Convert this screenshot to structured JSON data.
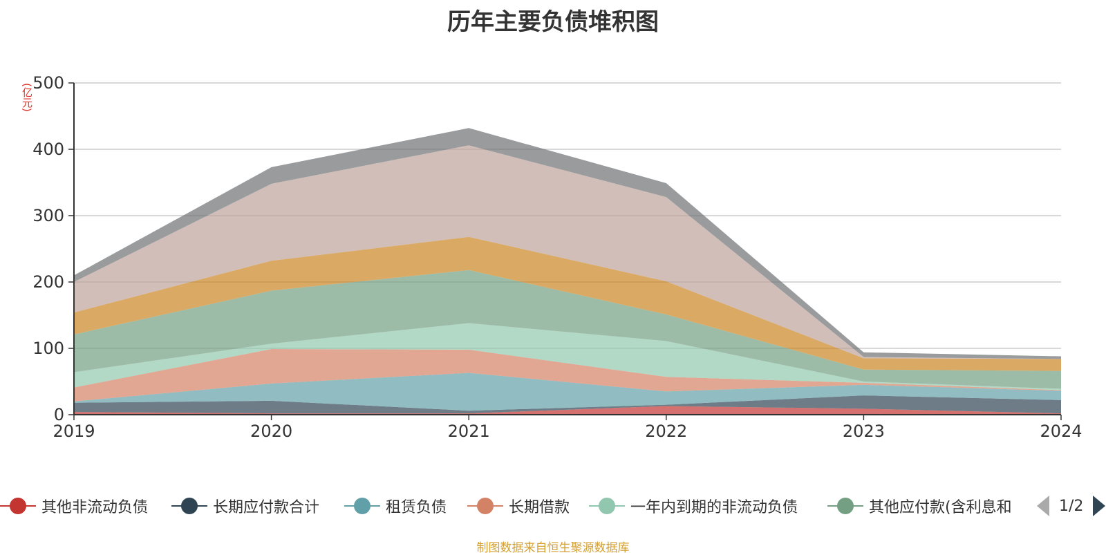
{
  "chart_data": {
    "type": "area",
    "stacked": true,
    "title": "历年主要负债堆积图",
    "ylabel": "(亿元)",
    "ylim": [
      0,
      500
    ],
    "yticks": [
      0,
      100,
      200,
      300,
      400,
      500
    ],
    "categories": [
      "2019",
      "2020",
      "2021",
      "2022",
      "2023",
      "2024"
    ],
    "grid": true,
    "legend_position": "bottom",
    "series": [
      {
        "name": "其他非流动负债",
        "color": "#c23531",
        "values": [
          4,
          2,
          2,
          13,
          9,
          2
        ]
      },
      {
        "name": "长期应付款合计",
        "color": "#2f4554",
        "values": [
          14,
          19,
          4,
          2,
          20,
          20
        ]
      },
      {
        "name": "租赁负债",
        "color": "#61a0a8",
        "values": [
          2,
          26,
          57,
          20,
          16,
          14
        ]
      },
      {
        "name": "长期借款",
        "color": "#d48265",
        "values": [
          21,
          52,
          35,
          22,
          3,
          1
        ]
      },
      {
        "name": "一年内到期的非流动负债",
        "color": "#91c7ae",
        "values": [
          23,
          8,
          40,
          54,
          2,
          2
        ]
      },
      {
        "name": "其他应付款(含利息和",
        "color": "#749f83",
        "values": [
          57,
          80,
          80,
          40,
          18,
          27
        ]
      },
      {
        "name": "",
        "color": "#ca8622",
        "values": [
          33,
          45,
          50,
          50,
          17,
          18
        ]
      },
      {
        "name": "",
        "color": "#bda29a",
        "values": [
          46,
          116,
          138,
          127,
          2,
          0
        ]
      },
      {
        "name": "",
        "color": "#6e7074",
        "values": [
          10,
          25,
          26,
          21,
          7,
          4
        ]
      }
    ]
  },
  "legend": {
    "page_label": "1/2"
  },
  "source_note": "制图数据来自恒生聚源数据库"
}
